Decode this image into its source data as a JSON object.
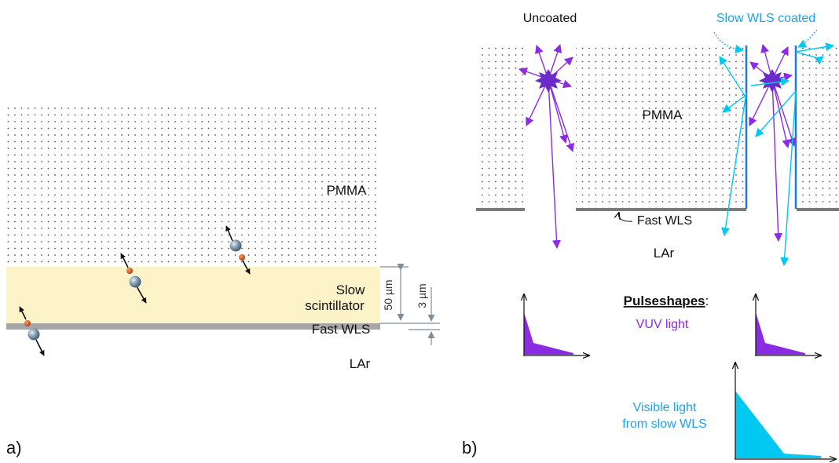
{
  "panel_a": {
    "panel_label": "a)",
    "pmma_label": "PMMA",
    "slow_label_line1": "Slow",
    "slow_label_line2": "scintillator",
    "fast_wls_label": "Fast WLS",
    "lar_label": "LAr",
    "dim_50_label": "50 µm",
    "dim_3_label": "3 µm"
  },
  "panel_b": {
    "panel_label": "b)",
    "uncoated_label": "Uncoated",
    "slow_wls_coated_label": "Slow WLS coated",
    "pmma_label": "PMMA",
    "fast_wls_label": "Fast WLS",
    "lar_label": "LAr",
    "pulseshapes_label": "Pulseshapes",
    "pulseshapes_colon": ":",
    "vuv_label": "VUV light",
    "visible_line1": "Visible light",
    "visible_line2": "from slow WLS"
  },
  "colors": {
    "slow_scintillator": "#fdf3c8",
    "fast_wls": "#a6a6a6",
    "vuv_purple": "#8b2be2",
    "visible_cyan": "#00c8f0",
    "label_cyan": "#1ea3ea",
    "dimension_gray": "#7f8c99",
    "dots": "#555555"
  }
}
